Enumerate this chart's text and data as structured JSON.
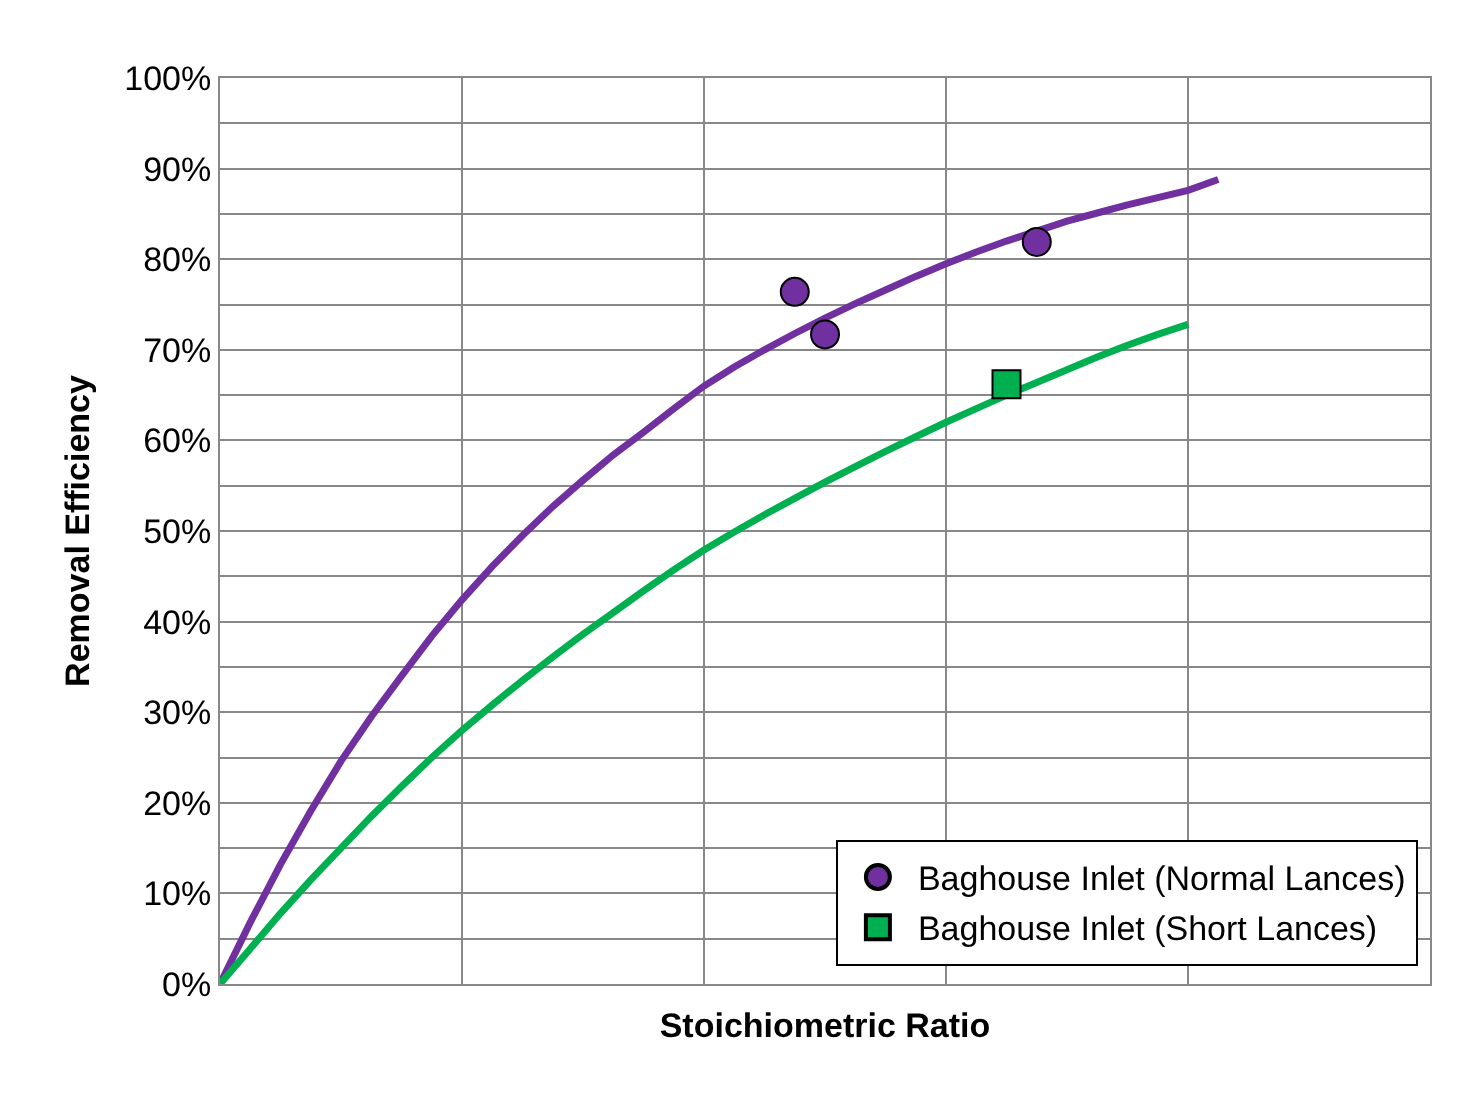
{
  "chart_data": {
    "type": "line",
    "xlabel": "Stoichiometric Ratio",
    "ylabel": "Removal Efficiency",
    "categories": [
      null,
      null,
      null,
      null,
      null,
      null,
      null,
      null,
      null,
      null,
      null,
      null,
      null,
      null,
      null,
      null,
      null,
      null,
      null,
      null,
      null,
      null,
      null,
      null,
      null,
      null,
      null,
      null,
      null,
      null,
      null,
      null,
      null,
      null,
      null,
      null,
      null,
      null,
      null,
      null,
      null
    ],
    "ylim": [
      0,
      100
    ],
    "yticks": [
      {
        "value": 0,
        "label": "0%"
      },
      {
        "value": 5,
        "label": null
      },
      {
        "value": 10,
        "label": "10%"
      },
      {
        "value": 15,
        "label": null
      },
      {
        "value": 20,
        "label": "20%"
      },
      {
        "value": 25,
        "label": null
      },
      {
        "value": 30,
        "label": "30%"
      },
      {
        "value": 35,
        "label": null
      },
      {
        "value": 40,
        "label": "40%"
      },
      {
        "value": 45,
        "label": null
      },
      {
        "value": 50,
        "label": "50%"
      },
      {
        "value": 55,
        "label": null
      },
      {
        "value": 60,
        "label": "60%"
      },
      {
        "value": 65,
        "label": null
      },
      {
        "value": 70,
        "label": "70%"
      },
      {
        "value": 75,
        "label": null
      },
      {
        "value": 80,
        "label": "80%"
      },
      {
        "value": 85,
        "label": null
      },
      {
        "value": 90,
        "label": "90%"
      },
      {
        "value": 95,
        "label": null
      },
      {
        "value": 100,
        "label": "100%"
      }
    ],
    "grid": true,
    "legend": "bottom right",
    "tick_labels": "y",
    "series": [
      {
        "color": "#7030a0",
        "values": [
          0,
          6.8,
          13.2,
          19.1,
          24.6,
          29.5,
          34,
          38.4,
          42.4,
          46.1,
          49.5,
          52.7,
          55.6,
          58.4,
          60.9,
          63.5,
          66,
          68.1,
          70,
          71.8,
          73.5,
          75.1,
          76.6,
          78.1,
          79.5,
          80.8,
          82,
          83.1,
          84.2,
          85.1,
          86,
          86.8,
          87.6,
          88.8,
          null,
          null,
          null,
          null,
          null,
          null,
          null
        ]
      },
      {
        "color": "#00b050",
        "values": [
          0,
          3.9,
          7.8,
          11.5,
          15,
          18.5,
          21.8,
          25,
          28,
          30.8,
          33.5,
          36.1,
          38.6,
          41,
          43.4,
          45.7,
          47.9,
          49.9,
          51.8,
          53.6,
          55.4,
          57.1,
          58.8,
          60.4,
          62,
          63.5,
          65,
          66.4,
          67.8,
          69.2,
          70.5,
          71.7,
          72.8,
          null,
          null,
          null,
          null,
          null,
          null,
          null,
          null
        ]
      },
      {
        "type": "scatter",
        "name": "Baghouse Inlet (Normal Lances)",
        "color": "#7030a0",
        "marker": "circle",
        "values": [
          null,
          null,
          null,
          null,
          null,
          null,
          null,
          null,
          null,
          null,
          null,
          null,
          null,
          null,
          null,
          null,
          null,
          null,
          null,
          76.4,
          71.7,
          null,
          null,
          null,
          null,
          null,
          null,
          81.9,
          null,
          null,
          null,
          null,
          null,
          null,
          null,
          null,
          null,
          null,
          null,
          null,
          null
        ]
      },
      {
        "type": "scatter",
        "name": "Baghouse Inlet (Short Lances)",
        "color": "#00b050",
        "marker": "square",
        "values": [
          null,
          null,
          null,
          null,
          null,
          null,
          null,
          null,
          null,
          null,
          null,
          null,
          null,
          null,
          null,
          null,
          null,
          null,
          null,
          null,
          null,
          null,
          null,
          null,
          null,
          null,
          66.2,
          null,
          null,
          null,
          null,
          null,
          null,
          null,
          null,
          null,
          null,
          null,
          null,
          null,
          null
        ]
      }
    ]
  }
}
